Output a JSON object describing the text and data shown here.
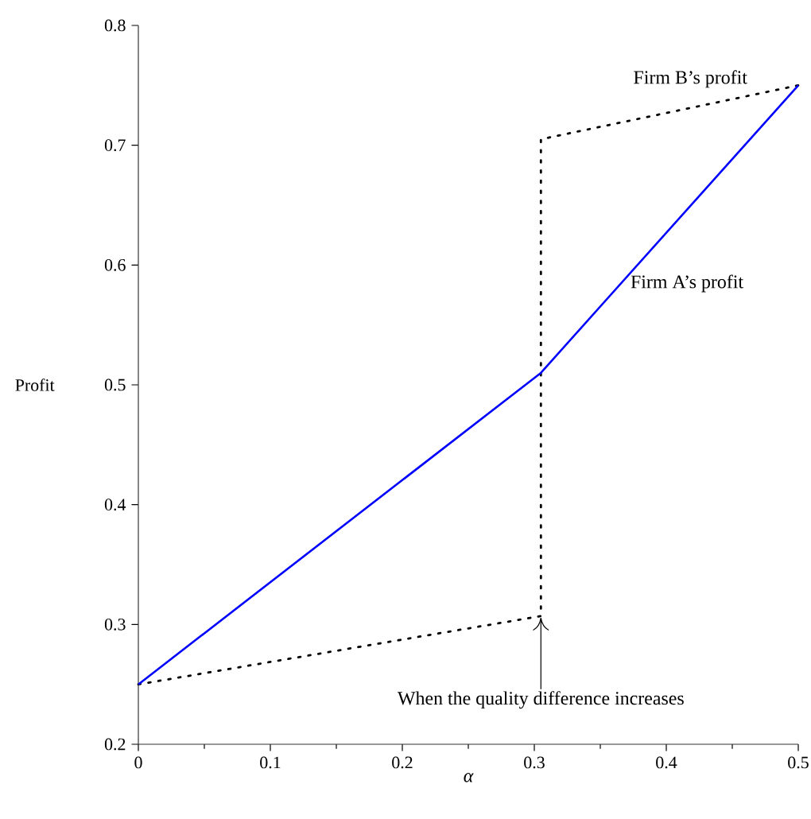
{
  "chart_data": {
    "type": "line",
    "xlabel": "α",
    "ylabel": "Profit",
    "xlim": [
      0,
      0.5
    ],
    "ylim": [
      0.2,
      0.8
    ],
    "xticks": [
      0,
      0.1,
      0.2,
      0.3,
      0.4,
      0.5
    ],
    "yticks": [
      0.2,
      0.3,
      0.4,
      0.5,
      0.6,
      0.7,
      0.8
    ],
    "grid": false,
    "legend": false,
    "marker": "none",
    "series": [
      {
        "name": "Firm B’s profit",
        "color": "#000000",
        "line_style": "dotted",
        "x": [
          0,
          0.305,
          0.305,
          0.5
        ],
        "values": [
          0.25,
          0.307,
          0.705,
          0.75
        ]
      },
      {
        "name": "Firm A’s profit",
        "color": "#0000ff",
        "line_style": "solid",
        "x": [
          0,
          0.305,
          0.5
        ],
        "values": [
          0.25,
          0.51,
          0.75
        ]
      }
    ],
    "annotations": [
      {
        "text": "When the quality difference increases",
        "x": 0.305,
        "y": 0.307
      }
    ]
  }
}
